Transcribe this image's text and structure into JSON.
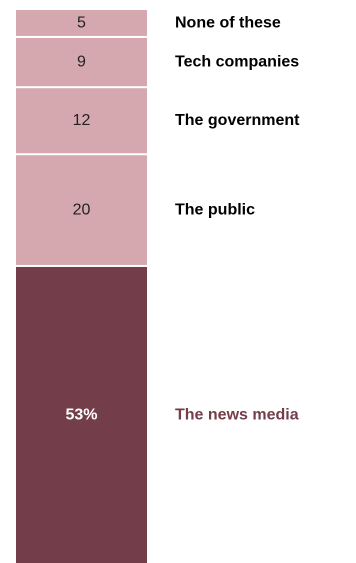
{
  "chart_data": {
    "type": "bar",
    "stacked": true,
    "orientation": "vertical",
    "categories": [
      "None of these",
      "Tech companies",
      "The government",
      "The public",
      "The news media"
    ],
    "values": [
      5,
      9,
      12,
      20,
      53
    ],
    "value_labels": [
      "5",
      "9",
      "12",
      "20",
      "53%"
    ],
    "highlighted": "The news media",
    "colors": {
      "segment": "#d4a8ae",
      "highlight": "#733e49",
      "label_default": "#000000",
      "value_default": "#222222",
      "value_highlight": "#ffffff",
      "label_highlight": "#733e49"
    }
  }
}
